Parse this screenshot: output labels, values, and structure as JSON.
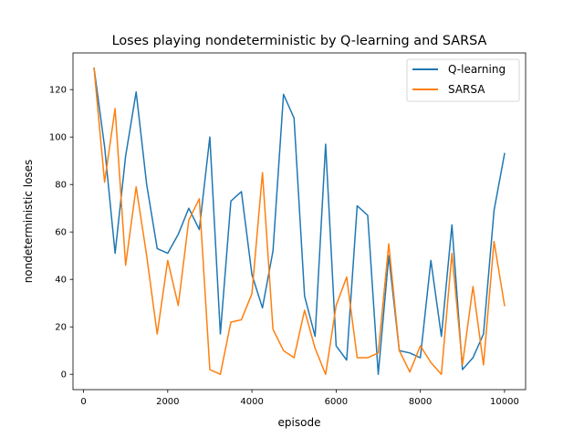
{
  "colors": {
    "q_learning": "#1f77b4",
    "sarsa": "#ff7f0e",
    "axis": "#000000",
    "legend_border": "#cccccc"
  },
  "chart_data": {
    "type": "line",
    "title": "Loses playing nondeterministic by Q-learning and SARSA",
    "xlabel": "episode",
    "ylabel": "nondeterministic loses",
    "xlim": [
      -250,
      10500
    ],
    "ylim": [
      -6.45,
      135.45
    ],
    "xticks": [
      0,
      2000,
      4000,
      6000,
      8000,
      10000
    ],
    "yticks": [
      0,
      20,
      40,
      60,
      80,
      100,
      120
    ],
    "grid": false,
    "legend_position": "top-right",
    "x": [
      250,
      500,
      750,
      1000,
      1250,
      1500,
      1750,
      2000,
      2250,
      2500,
      2750,
      3000,
      3250,
      3500,
      3750,
      4000,
      4250,
      4500,
      4750,
      5000,
      5250,
      5500,
      5750,
      6000,
      6250,
      6500,
      6750,
      7000,
      7250,
      7500,
      7750,
      8000,
      8250,
      8500,
      8750,
      9000,
      9250,
      9500,
      9750,
      10000
    ],
    "series": [
      {
        "name": "Q-learning",
        "color": "#1f77b4",
        "values": [
          129,
          96,
          51,
          92,
          119,
          80,
          53,
          51,
          59,
          70,
          61,
          100,
          17,
          73,
          77,
          42,
          28,
          52,
          118,
          108,
          33,
          16,
          97,
          12,
          6,
          71,
          67,
          0,
          50,
          10,
          9,
          7,
          48,
          16,
          63,
          2,
          7,
          17,
          69,
          93
        ]
      },
      {
        "name": "SARSA",
        "color": "#ff7f0e",
        "values": [
          129,
          81,
          112,
          46,
          79,
          50,
          17,
          48,
          29,
          65,
          74,
          2,
          0,
          22,
          23,
          34,
          85,
          19,
          10,
          7,
          27,
          11,
          0,
          29,
          41,
          7,
          7,
          9,
          55,
          10,
          1,
          12,
          5,
          0,
          51,
          4,
          37,
          4,
          56,
          29
        ]
      }
    ]
  }
}
